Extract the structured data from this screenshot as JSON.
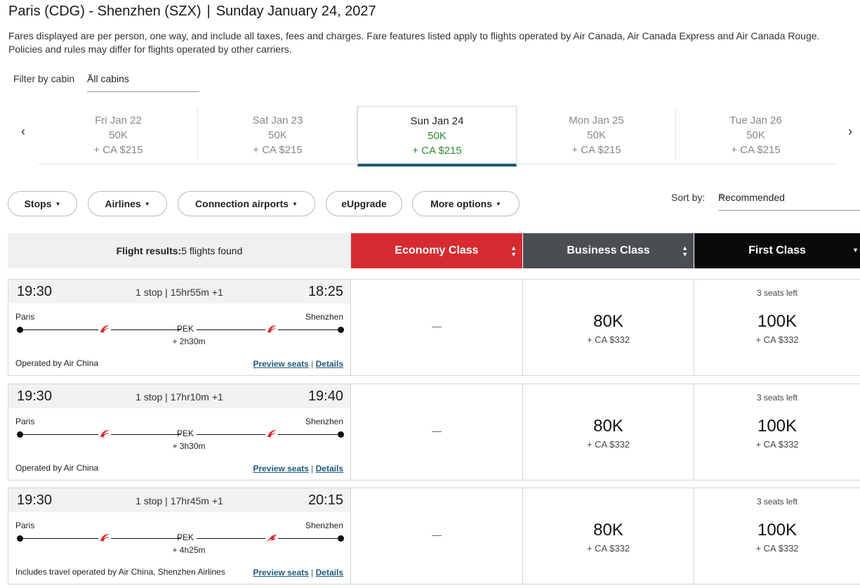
{
  "header": {
    "route": "Paris (CDG) - Shenzhen (SZX)",
    "separator": "|",
    "date": "Sunday January 24, 2027",
    "fare_note": "Fares displayed are per person, one way, and include all taxes, fees and charges. Fare features listed apply to flights operated by Air Canada, Air Canada Express and Air Canada Rouge. Policies and rules may differ for flights operated by other carriers."
  },
  "cabin_filter": {
    "label": "Filter by cabin",
    "value": "All cabins"
  },
  "date_nav": {
    "prev_icon": "chevron-left-icon",
    "next_icon": "chevron-right-icon",
    "dates": [
      {
        "day": "Fri Jan 22",
        "points": "50K",
        "cash": "+ CA $215",
        "active": false
      },
      {
        "day": "Sat Jan 23",
        "points": "50K",
        "cash": "+ CA $215",
        "active": false
      },
      {
        "day": "Sun Jan 24",
        "points": "50K",
        "cash": "+ CA $215",
        "active": true
      },
      {
        "day": "Mon Jan 25",
        "points": "50K",
        "cash": "+ CA $215",
        "active": false
      },
      {
        "day": "Tue Jan 26",
        "points": "50K",
        "cash": "+ CA $215",
        "active": false
      }
    ]
  },
  "filters": {
    "stops": "Stops",
    "airlines": "Airlines",
    "connection_airports": "Connection airports",
    "eupgrade": "eUpgrade",
    "more_options": "More options"
  },
  "sort": {
    "label": "Sort by:",
    "value": "Recommended"
  },
  "results_header": {
    "label": "Flight results:",
    "count": "5 flights found",
    "economy": "Economy Class",
    "business": "Business Class",
    "first": "First Class"
  },
  "colors": {
    "economy": "#d52b30",
    "business": "#4a4d52",
    "first": "#0a0a0a",
    "active_price": "#2e8b2e",
    "link": "#1c5b7b",
    "air_china_logo": "#e4262c"
  },
  "flights": [
    {
      "depart": "19:30",
      "arrive": "18:25",
      "stops": "1 stop | 15hr55m +1",
      "origin": "Paris",
      "destination": "Shenzhen",
      "layover_airport": "PEK",
      "layover_duration": "+ 2h30m",
      "operated_by": "Operated by Air China",
      "preview_seats": "Preview seats",
      "link_sep": "|",
      "details": "Details",
      "economy": "—",
      "business": {
        "points": "80K",
        "cash": "+ CA $332"
      },
      "first": {
        "seats_left": "3 seats left",
        "points": "100K",
        "cash": "+ CA $332"
      }
    },
    {
      "depart": "19:30",
      "arrive": "19:40",
      "stops": "1 stop | 17hr10m +1",
      "origin": "Paris",
      "destination": "Shenzhen",
      "layover_airport": "PEK",
      "layover_duration": "+ 3h30m",
      "operated_by": "Operated by Air China",
      "preview_seats": "Preview seats",
      "link_sep": "|",
      "details": "Details",
      "economy": "—",
      "business": {
        "points": "80K",
        "cash": "+ CA $332"
      },
      "first": {
        "seats_left": "3 seats left",
        "points": "100K",
        "cash": "+ CA $332"
      }
    },
    {
      "depart": "19:30",
      "arrive": "20:15",
      "stops": "1 stop | 17hr45m +1",
      "origin": "Paris",
      "destination": "Shenzhen",
      "layover_airport": "PEK",
      "layover_duration": "+ 4h25m",
      "operated_by": "Includes travel operated by Air China, Shenzhen Airlines",
      "preview_seats": "Preview seats",
      "link_sep": "|",
      "details": "Details",
      "economy": "—",
      "business": {
        "points": "80K",
        "cash": "+ CA $332"
      },
      "first": {
        "seats_left": "3 seats left",
        "points": "100K",
        "cash": "+ CA $332"
      }
    }
  ]
}
